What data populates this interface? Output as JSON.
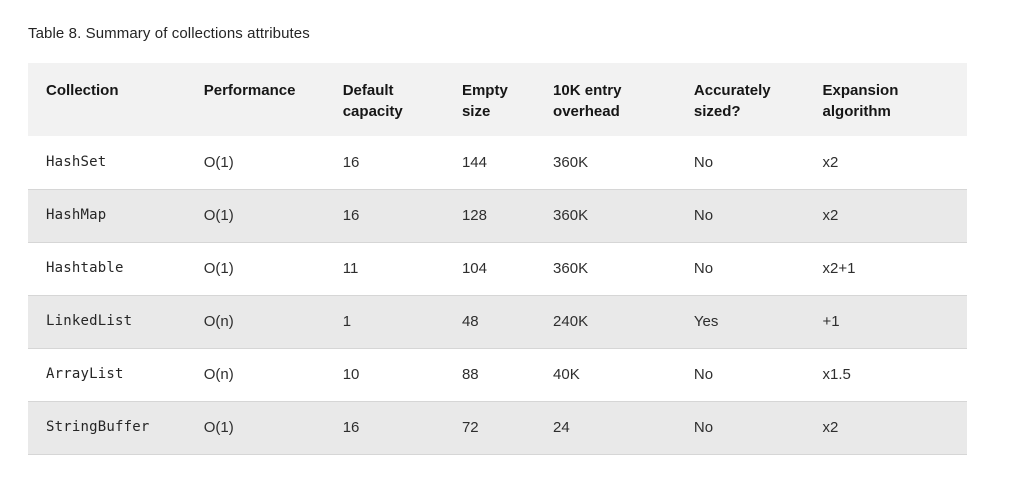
{
  "caption": "Table 8. Summary of collections attributes",
  "table": {
    "columns": [
      {
        "label": "Collection"
      },
      {
        "label": "Performance"
      },
      {
        "label": "Default capacity"
      },
      {
        "label": "Empty size"
      },
      {
        "label": "10K entry overhead"
      },
      {
        "label": "Accurately sized?"
      },
      {
        "label": "Expansion algorithm"
      }
    ],
    "rows": [
      [
        "HashSet",
        "O(1)",
        "16",
        "144",
        "360K",
        "No",
        "x2"
      ],
      [
        "HashMap",
        "O(1)",
        "16",
        "128",
        "360K",
        "No",
        "x2"
      ],
      [
        "Hashtable",
        "O(1)",
        "11",
        "104",
        "360K",
        "No",
        "x2+1"
      ],
      [
        "LinkedList",
        "O(n)",
        "1",
        "48",
        "240K",
        "Yes",
        "+1"
      ],
      [
        "ArrayList",
        "O(n)",
        "10",
        "88",
        "40K",
        "No",
        "x1.5"
      ],
      [
        "StringBuffer",
        "O(1)",
        "16",
        "72",
        "24",
        "No",
        "x2"
      ]
    ]
  },
  "colors": {
    "header_bg": "#f2f2f2",
    "stripe_bg": "#e9e9e9",
    "row_border": "#d6d6d6",
    "header_text": "#161616",
    "body_text": "#2e2e2e",
    "caption_text": "#252525"
  }
}
